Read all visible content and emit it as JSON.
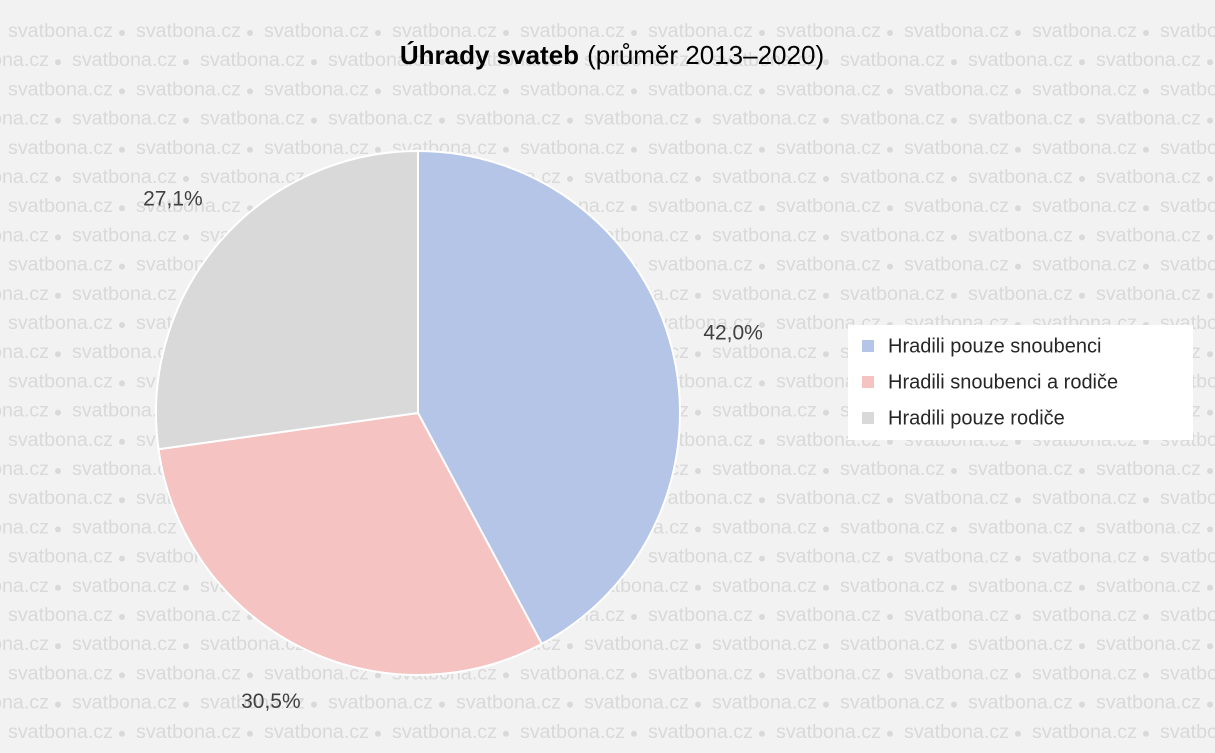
{
  "chart_data": {
    "type": "pie",
    "title": "Úhrady svateb",
    "subtitle": "(průměr  2013–2020)",
    "watermark": "svatbona.cz",
    "categories": [
      "Hradili pouze snoubenci",
      "Hradili snoubenci a rodiče",
      "Hradili pouze rodiče"
    ],
    "values": [
      42.0,
      30.5,
      27.1
    ],
    "value_labels": [
      "42,0%",
      "30,5%",
      "27,1%"
    ],
    "colors": [
      "#b4c5e7",
      "#f5c3c2",
      "#d9d9d9"
    ],
    "legend": "right"
  }
}
